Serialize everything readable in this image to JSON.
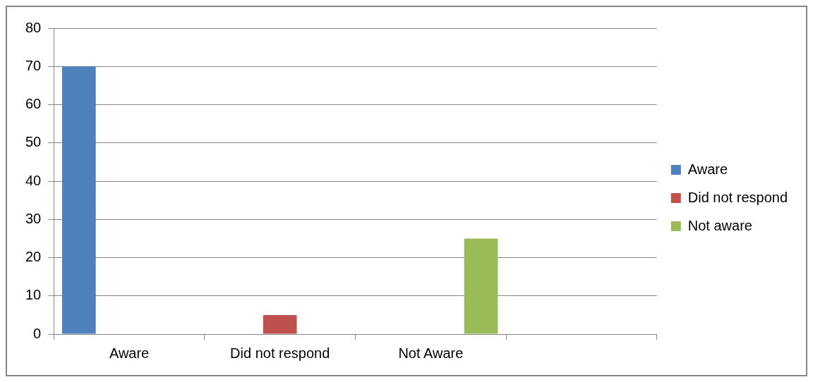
{
  "chart_data": {
    "type": "bar",
    "categories": [
      "Aware",
      "Did not respond",
      "Not Aware",
      null
    ],
    "series": [
      {
        "name": "Aware",
        "color": "#4f81bd",
        "values": [
          70,
          null,
          null,
          null
        ]
      },
      {
        "name": "Did not respond",
        "color": "#c0504d",
        "values": [
          null,
          5,
          null,
          null
        ]
      },
      {
        "name": "Not aware",
        "color": "#9bbb59",
        "values": [
          null,
          null,
          25,
          null
        ]
      }
    ],
    "ylim": [
      0,
      80
    ],
    "yticks": [
      0,
      10,
      20,
      30,
      40,
      50,
      60,
      70,
      80
    ],
    "grid": "y",
    "legend": "right"
  }
}
